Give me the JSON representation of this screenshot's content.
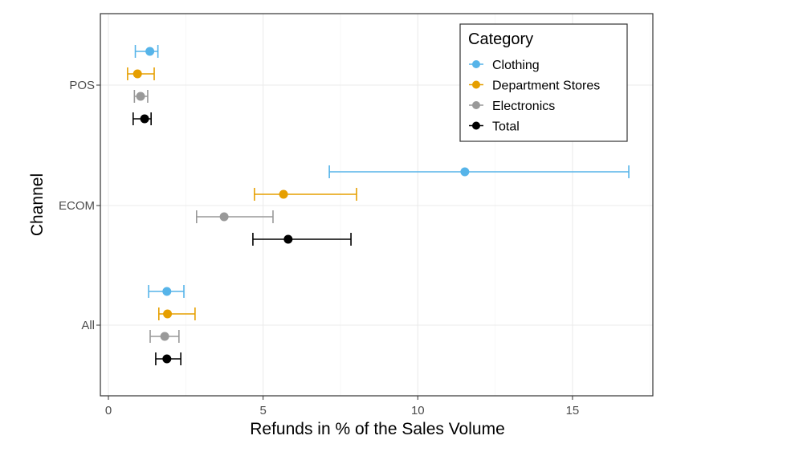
{
  "chart_data": {
    "type": "errorbar",
    "xlabel": "Refunds in % of the Sales Volume",
    "ylabel": "Channel",
    "xlim": [
      -0.2,
      17.6
    ],
    "xticks": [
      0,
      5,
      10,
      15
    ],
    "xtick_labels": [
      "0",
      "5",
      "10",
      "15"
    ],
    "categories": [
      "POS",
      "ECOM",
      "All"
    ],
    "grid": true,
    "legend": {
      "title": "Category",
      "placement": "top-right"
    },
    "series": [
      {
        "name": "Clothing",
        "color": "#56B4E9",
        "points": [
          {
            "y": "POS",
            "x": 1.34,
            "lo": 0.87,
            "hi": 1.6
          },
          {
            "y": "ECOM",
            "x": 11.52,
            "lo": 7.14,
            "hi": 16.82
          },
          {
            "y": "All",
            "x": 1.89,
            "lo": 1.3,
            "hi": 2.44
          }
        ]
      },
      {
        "name": "Department Stores",
        "color": "#E69F00",
        "points": [
          {
            "y": "POS",
            "x": 0.94,
            "lo": 0.62,
            "hi": 1.48
          },
          {
            "y": "ECOM",
            "x": 5.66,
            "lo": 4.72,
            "hi": 8.02
          },
          {
            "y": "All",
            "x": 1.91,
            "lo": 1.63,
            "hi": 2.8
          }
        ]
      },
      {
        "name": "Electronics",
        "color": "#999999",
        "points": [
          {
            "y": "POS",
            "x": 1.04,
            "lo": 0.84,
            "hi": 1.27
          },
          {
            "y": "ECOM",
            "x": 3.74,
            "lo": 2.85,
            "hi": 5.32
          },
          {
            "y": "All",
            "x": 1.82,
            "lo": 1.35,
            "hi": 2.28
          }
        ]
      },
      {
        "name": "Total",
        "color": "#000000",
        "points": [
          {
            "y": "POS",
            "x": 1.17,
            "lo": 0.8,
            "hi": 1.38
          },
          {
            "y": "ECOM",
            "x": 5.81,
            "lo": 4.67,
            "hi": 7.84
          },
          {
            "y": "All",
            "x": 1.89,
            "lo": 1.53,
            "hi": 2.34
          }
        ]
      }
    ]
  }
}
